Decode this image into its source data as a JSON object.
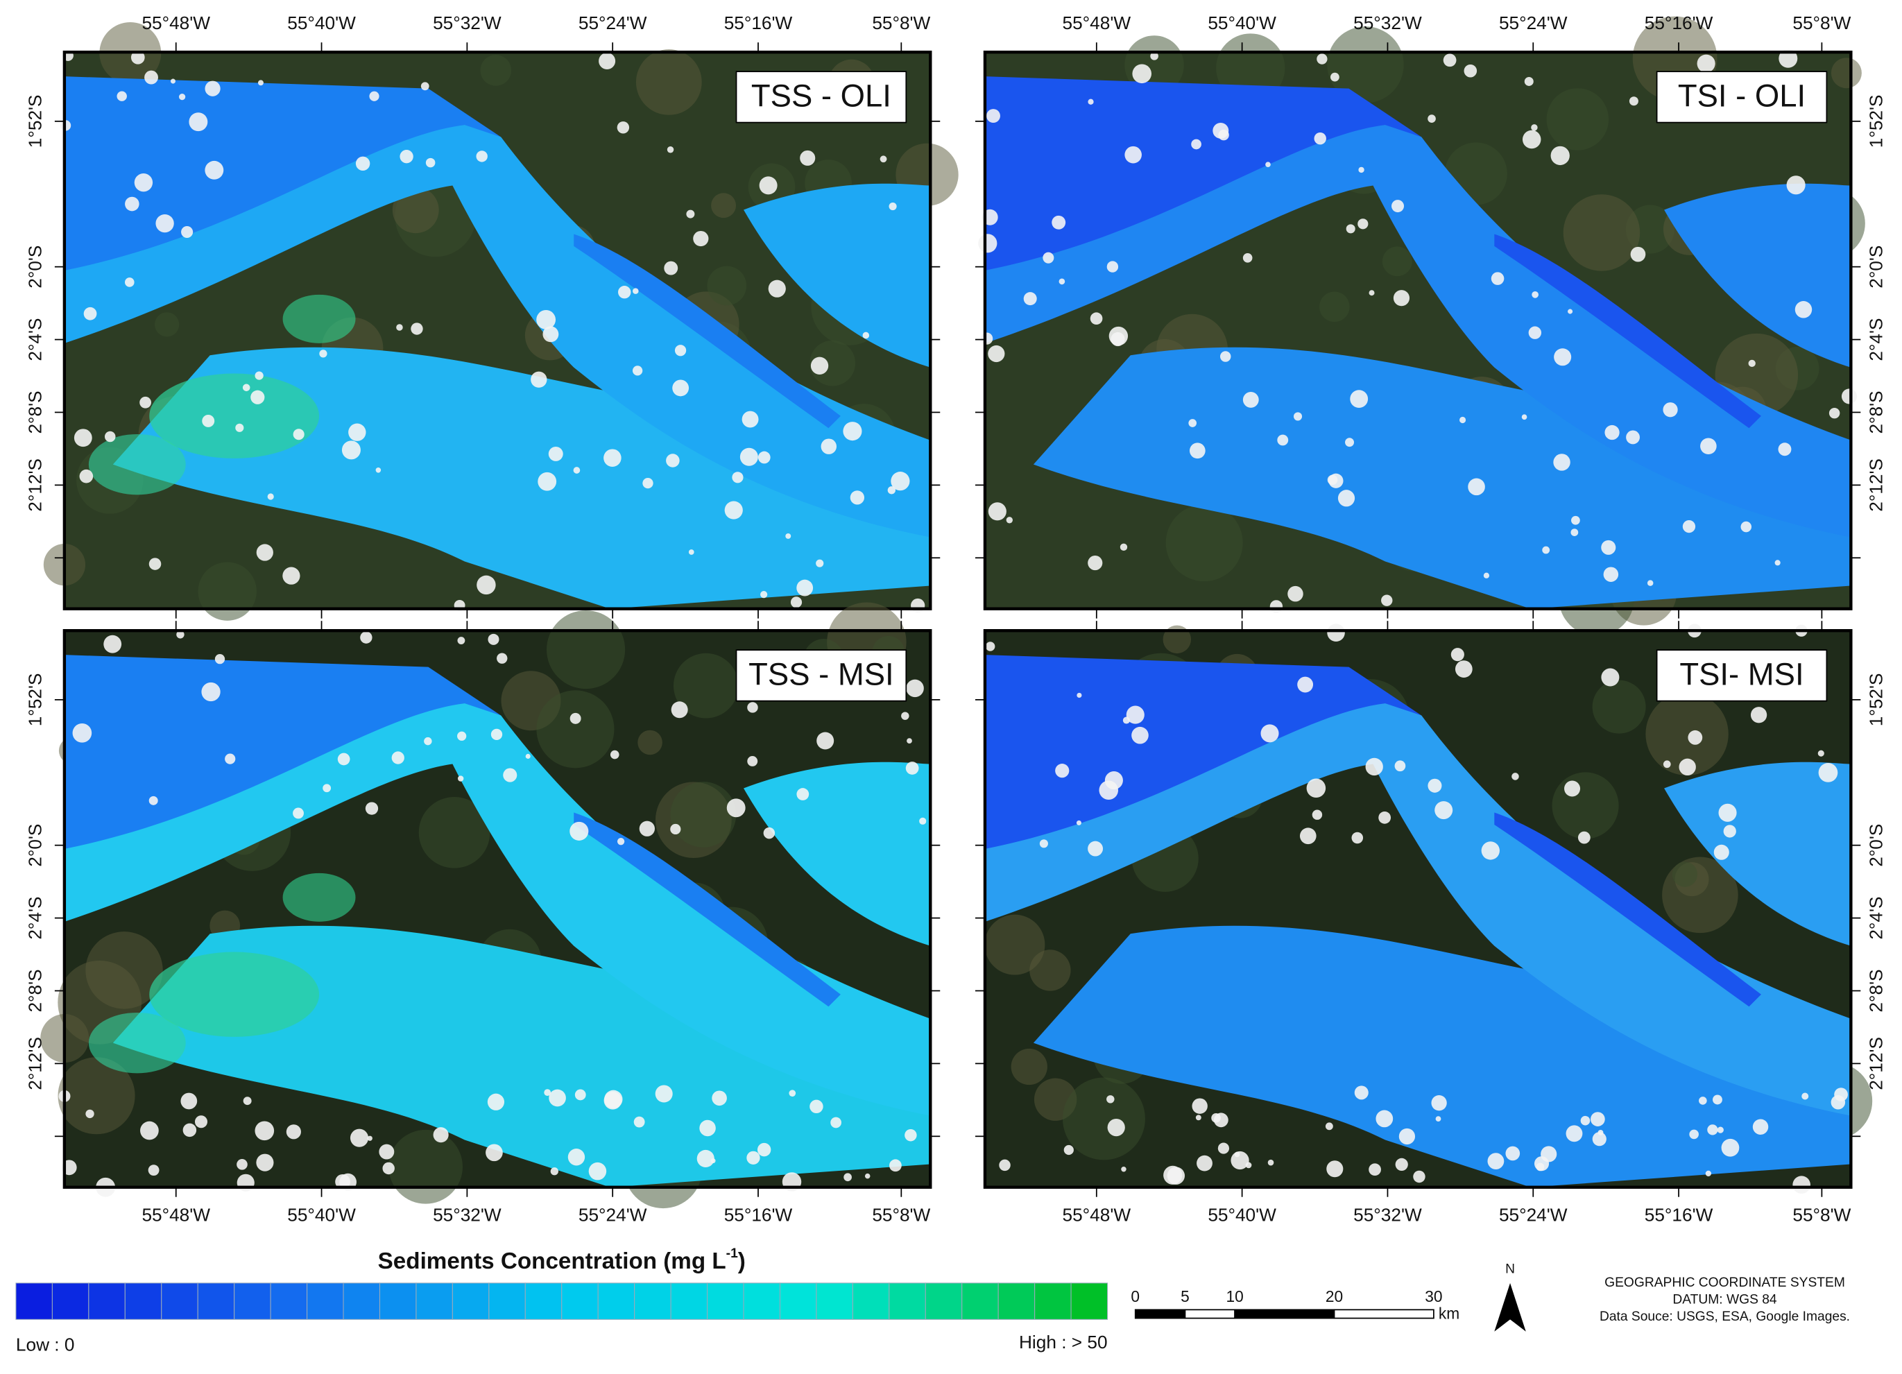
{
  "panels": [
    {
      "label": "TSS - OLI"
    },
    {
      "label": "TSI - OLI"
    },
    {
      "label": "TSS - MSI"
    },
    {
      "label": "TSI- MSI"
    }
  ],
  "lon_labels": [
    "55°48'W",
    "55°40'W",
    "55°32'W",
    "55°24'W",
    "55°16'W",
    "55°8'W"
  ],
  "lat_labels": [
    "1°52'S",
    "2°0'S",
    "2°4'S",
    "2°8'S",
    "2°12'S"
  ],
  "legend": {
    "title": "Sediments Concentration (mg L",
    "title_sup": "-1",
    "title_end": ")",
    "low": "Low : 0",
    "high": "High : > 50"
  },
  "scale_bar": {
    "ticks": [
      0,
      5,
      10,
      20,
      30
    ],
    "unit": "km"
  },
  "north": "N",
  "credits": [
    "GEOGRAPHIC COORDINATE SYSTEM",
    "DATUM: WGS 84",
    "Data Souce: USGS, ESA, Google Images."
  ]
}
